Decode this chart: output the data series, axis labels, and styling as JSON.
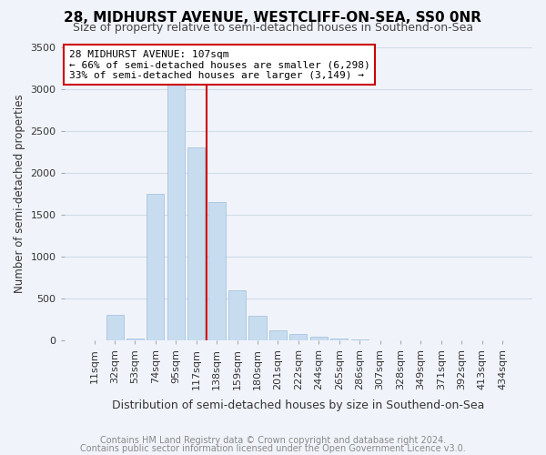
{
  "title": "28, MIDHURST AVENUE, WESTCLIFF-ON-SEA, SS0 0NR",
  "subtitle": "Size of property relative to semi-detached houses in Southend-on-Sea",
  "xlabel": "Distribution of semi-detached houses by size in Southend-on-Sea",
  "ylabel": "Number of semi-detached properties",
  "footnote1": "Contains HM Land Registry data © Crown copyright and database right 2024.",
  "footnote2": "Contains public sector information licensed under the Open Government Licence v3.0.",
  "annotation_title": "28 MIDHURST AVENUE: 107sqm",
  "annotation_line1": "← 66% of semi-detached houses are smaller (6,298)",
  "annotation_line2": "33% of semi-detached houses are larger (3,149) →",
  "bar_values": [
    5,
    310,
    20,
    1750,
    3050,
    2300,
    1650,
    600,
    300,
    125,
    75,
    50,
    20,
    10,
    5,
    3,
    2,
    1,
    1,
    0,
    0
  ],
  "categories": [
    "11sqm",
    "32sqm",
    "53sqm",
    "74sqm",
    "95sqm",
    "117sqm",
    "138sqm",
    "159sqm",
    "180sqm",
    "201sqm",
    "222sqm",
    "244sqm",
    "265sqm",
    "286sqm",
    "307sqm",
    "328sqm",
    "349sqm",
    "371sqm",
    "392sqm",
    "413sqm",
    "434sqm"
  ],
  "bar_color": "#c8dcf0",
  "bar_edgecolor": "#9bbcd8",
  "vline_color": "#cc0000",
  "vline_x_idx": 5.5,
  "annotation_box_facecolor": "#ffffff",
  "annotation_box_edgecolor": "#cc0000",
  "title_fontsize": 11,
  "subtitle_fontsize": 9,
  "xlabel_fontsize": 9,
  "ylabel_fontsize": 8.5,
  "tick_fontsize": 8,
  "annotation_fontsize": 8,
  "footnote_fontsize": 7,
  "ylim": [
    0,
    3500
  ],
  "background_color": "#f0f4fa",
  "plot_background_color": "#f0f4fa",
  "grid_color": "#d0dce8",
  "title_color": "#000000",
  "subtitle_color": "#444444",
  "footnote_color": "#888888"
}
